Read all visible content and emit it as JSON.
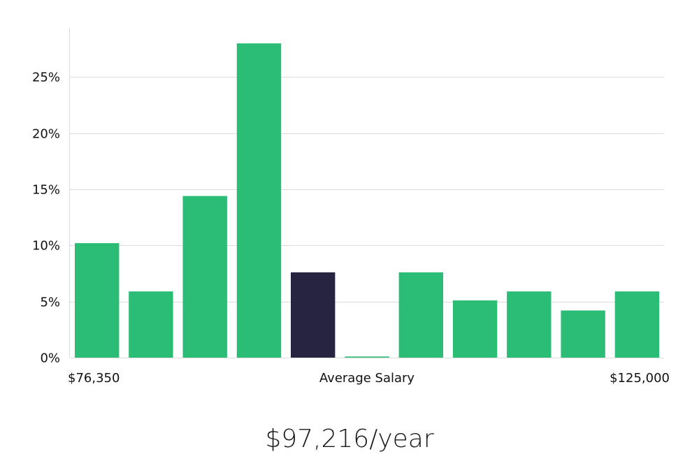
{
  "chart_data": {
    "type": "bar",
    "title": "",
    "xlabel": "Average Salary",
    "ylabel": "",
    "x_range_labels": {
      "min": "$76,350",
      "max": "$125,000"
    },
    "values": [
      10.2,
      5.9,
      14.4,
      28.0,
      7.6,
      0.1,
      7.6,
      5.1,
      5.9,
      4.2,
      5.9
    ],
    "highlight_index": 4,
    "ylim": [
      0,
      30
    ],
    "yticks": [
      0,
      5,
      10,
      15,
      20,
      25
    ],
    "ytick_labels": [
      "0%",
      "5%",
      "10%",
      "15%",
      "20%",
      "25%"
    ],
    "grid": true,
    "colors": {
      "bar": "#2bbd76",
      "highlight": "#272442"
    }
  },
  "summary": {
    "salary": "$97,216/year"
  }
}
